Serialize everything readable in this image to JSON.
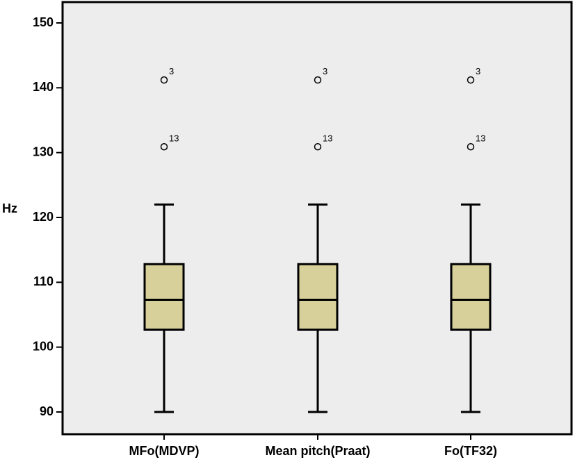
{
  "chart_data": {
    "type": "boxplot",
    "ylabel": "Hz",
    "ylim": [
      88,
      155
    ],
    "yticks": [
      "90",
      "100",
      "110",
      "120",
      "130",
      "140",
      "150"
    ],
    "ytick_values": [
      90,
      100,
      110,
      120,
      130,
      140,
      150
    ],
    "grid": false,
    "categories": [
      "MFo(MDVP)",
      "Mean pitch(Praat)",
      "Fo(TF32)"
    ],
    "boxes": [
      {
        "whisker_low": 90,
        "q1": 102.7,
        "median": 107.3,
        "q3": 112.8,
        "whisker_high": 122,
        "outliers": [
          {
            "value": 141.2,
            "label": "3"
          },
          {
            "value": 130.9,
            "label": "13"
          }
        ]
      },
      {
        "whisker_low": 90,
        "q1": 102.7,
        "median": 107.3,
        "q3": 112.8,
        "whisker_high": 122,
        "outliers": [
          {
            "value": 141.2,
            "label": "3"
          },
          {
            "value": 130.9,
            "label": "13"
          }
        ]
      },
      {
        "whisker_low": 90,
        "q1": 102.7,
        "median": 107.3,
        "q3": 112.8,
        "whisker_high": 122,
        "outliers": [
          {
            "value": 141.2,
            "label": "3"
          },
          {
            "value": 130.9,
            "label": "13"
          }
        ]
      }
    ],
    "colors": {
      "plot_background": "#ededed",
      "box_fill": "#d8d09a",
      "stroke": "#000000"
    }
  }
}
